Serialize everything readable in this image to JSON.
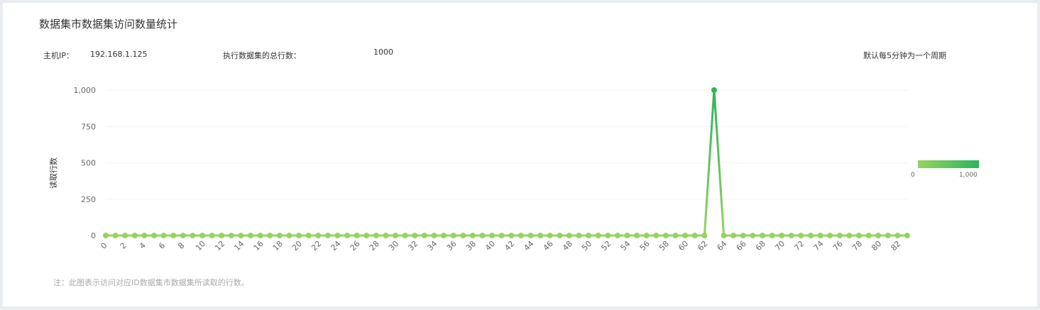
{
  "title": "数据集市数据集访问数量统计",
  "info": {
    "ip_label": "主机IP：",
    "ip_value": "192.168.1.125",
    "rows_label": "执行数据集的总行数：",
    "rows_value": "1000",
    "period_note": "默认每5分钟为一个周期"
  },
  "footnote": "注：此图表示访问对应ID数据集市数据集所读取的行数。",
  "colors": {
    "low": "#95d35f",
    "high": "#2db55d",
    "grid": "#f1f1f1"
  },
  "legend": {
    "min_label": "0",
    "max_label": "1,000"
  },
  "chart_data": {
    "type": "line",
    "xlabel": "",
    "ylabel": "读取行数",
    "ylim": [
      0,
      1000
    ],
    "yticks": [
      0,
      250,
      500,
      750,
      1000
    ],
    "ytick_labels": [
      "0",
      "250",
      "500",
      "750",
      "1,000"
    ],
    "x_tick_step": 2,
    "x": [
      0,
      1,
      2,
      3,
      4,
      5,
      6,
      7,
      8,
      9,
      10,
      11,
      12,
      13,
      14,
      15,
      16,
      17,
      18,
      19,
      20,
      21,
      22,
      23,
      24,
      25,
      26,
      27,
      28,
      29,
      30,
      31,
      32,
      33,
      34,
      35,
      36,
      37,
      38,
      39,
      40,
      41,
      42,
      43,
      44,
      45,
      46,
      47,
      48,
      49,
      50,
      51,
      52,
      53,
      54,
      55,
      56,
      57,
      58,
      59,
      60,
      61,
      62,
      63,
      64,
      65,
      66,
      67,
      68,
      69,
      70,
      71,
      72,
      73,
      74,
      75,
      76,
      77,
      78,
      79,
      80,
      81,
      82,
      83
    ],
    "values": [
      0,
      0,
      0,
      0,
      0,
      0,
      0,
      0,
      0,
      0,
      0,
      0,
      0,
      0,
      0,
      0,
      0,
      0,
      0,
      0,
      0,
      0,
      0,
      0,
      0,
      0,
      0,
      0,
      0,
      0,
      0,
      0,
      0,
      0,
      0,
      0,
      0,
      0,
      0,
      0,
      0,
      0,
      0,
      0,
      0,
      0,
      0,
      0,
      0,
      0,
      0,
      0,
      0,
      0,
      0,
      0,
      0,
      0,
      0,
      0,
      0,
      0,
      0,
      1000,
      0,
      0,
      0,
      0,
      0,
      0,
      0,
      0,
      0,
      0,
      0,
      0,
      0,
      0,
      0,
      0,
      0,
      0,
      0,
      0
    ],
    "visual_map": {
      "min": 0,
      "max": 1000,
      "position": "right"
    }
  }
}
